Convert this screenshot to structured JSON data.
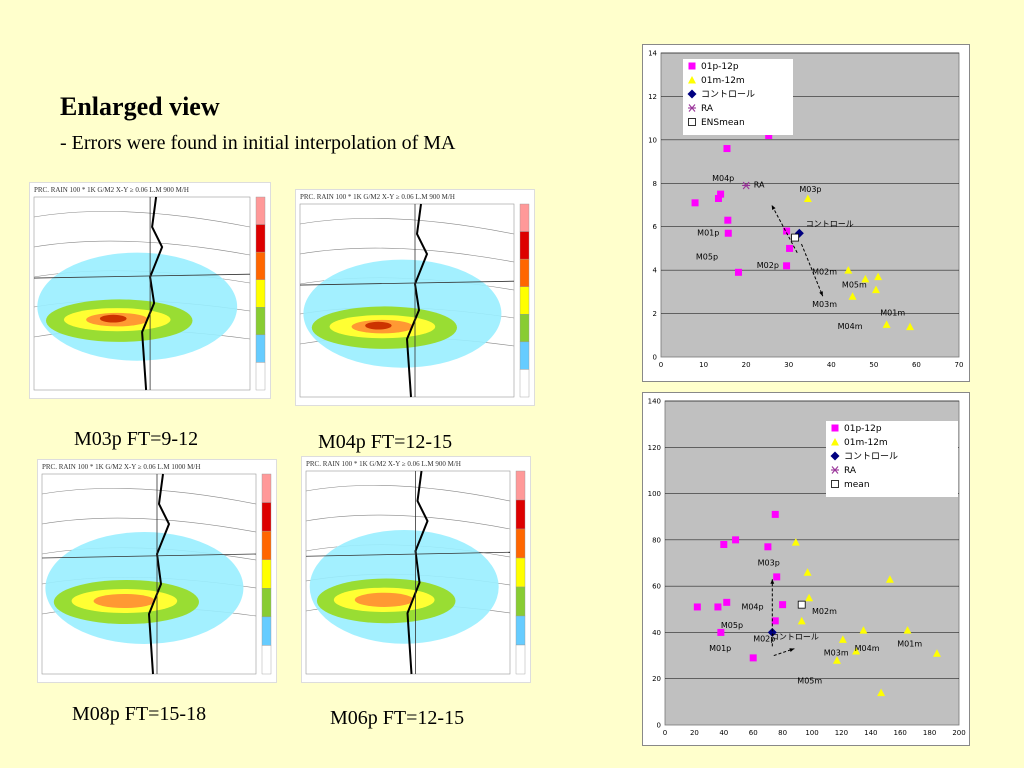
{
  "title": "Enlarged view",
  "subtitle": "- Errors were found in initial interpolation of MA",
  "maps": [
    {
      "caption": "M03p FT=9-12",
      "header": "PRC. RAIN   100 * 1K G/M2   X-Y   ≥ 0.06   L.M 900 M/H"
    },
    {
      "caption": "M04p FT=12-15",
      "header": "PRC. RAIN   100 * 1K G/M2   X-Y   ≥ 0.06   L.M 900 M/H"
    },
    {
      "caption": "M08p FT=15-18",
      "header": "PRC. RAIN   100 * 1K G/M2   X-Y   ≥ 0.06   L.M 1000 M/H"
    },
    {
      "caption": "M06p FT=12-15",
      "header": "PRC. RAIN   100 * 1K G/M2   X-Y   ≥ 0.06   L.M 900 M/H"
    }
  ],
  "colors": {
    "background": "#ffffcc",
    "plot_bg": "#c0c0c0",
    "magenta": "#ff00ff",
    "yellow": "#ffff00",
    "navy": "#000080",
    "purple": "#993399"
  },
  "chart_data": [
    {
      "type": "scatter",
      "xlim": [
        0,
        70
      ],
      "ylim": [
        0,
        14
      ],
      "xticks": [
        0,
        10,
        20,
        30,
        40,
        50,
        60,
        70
      ],
      "yticks": [
        0,
        2,
        4,
        6,
        8,
        10,
        12,
        14
      ],
      "grid": true,
      "legend_position": "top-left",
      "series": [
        {
          "name": "01p-12p",
          "marker": "square",
          "color": "#ff00ff",
          "points": [
            [
              25.3,
              10.2
            ],
            [
              15.5,
              9.6
            ],
            [
              8,
              7.1
            ],
            [
              13.5,
              7.3
            ],
            [
              14,
              7.5
            ],
            [
              15.7,
              6.3
            ],
            [
              15.8,
              5.7
            ],
            [
              18.2,
              3.9
            ],
            [
              29.5,
              4.2
            ],
            [
              29.5,
              5.8
            ],
            [
              30.2,
              5.0
            ]
          ]
        },
        {
          "name": "01m-12m",
          "marker": "triangle",
          "color": "#ffff00",
          "points": [
            [
              34.5,
              7.3
            ],
            [
              44,
              4.0
            ],
            [
              48,
              3.6
            ],
            [
              50.5,
              3.1
            ],
            [
              51,
              3.7
            ],
            [
              45,
              2.8
            ],
            [
              53,
              1.5
            ],
            [
              58.5,
              1.4
            ]
          ]
        },
        {
          "name": "コントロール",
          "marker": "diamond",
          "color": "#000080",
          "points": [
            [
              32.5,
              5.7
            ]
          ]
        },
        {
          "name": "RA",
          "marker": "asterisk",
          "color": "#993399",
          "points": [
            [
              20,
              7.9
            ]
          ]
        },
        {
          "name": "ENSmean",
          "marker": "open-square",
          "color": "#ffffff",
          "points": [
            [
              31.5,
              5.5
            ]
          ]
        }
      ],
      "labels": [
        {
          "text": "M04p",
          "x": 12,
          "y": 8.1
        },
        {
          "text": "RA",
          "x": 21.8,
          "y": 7.8
        },
        {
          "text": "M03p",
          "x": 32.5,
          "y": 7.6
        },
        {
          "text": "コントロール",
          "x": 34,
          "y": 6.0
        },
        {
          "text": "M01p",
          "x": 8.5,
          "y": 5.6
        },
        {
          "text": "M05p",
          "x": 8.2,
          "y": 4.5
        },
        {
          "text": "M02p",
          "x": 22.5,
          "y": 4.1
        },
        {
          "text": "M02m",
          "x": 35.5,
          "y": 3.8
        },
        {
          "text": "M05m",
          "x": 42.5,
          "y": 3.2
        },
        {
          "text": "M03m",
          "x": 35.5,
          "y": 2.3
        },
        {
          "text": "M01m",
          "x": 51.5,
          "y": 1.9
        },
        {
          "text": "M04m",
          "x": 41.5,
          "y": 1.3
        }
      ]
    },
    {
      "type": "scatter",
      "xlim": [
        0,
        200
      ],
      "ylim": [
        0,
        140
      ],
      "xticks": [
        0,
        20,
        40,
        60,
        80,
        100,
        120,
        140,
        160,
        180,
        200
      ],
      "yticks": [
        0,
        20,
        40,
        60,
        80,
        100,
        120,
        140
      ],
      "grid": true,
      "legend_position": "top-right",
      "series": [
        {
          "name": "01p-12p",
          "marker": "square",
          "color": "#ff00ff",
          "points": [
            [
              75,
              91
            ],
            [
              48,
              80
            ],
            [
              40,
              78
            ],
            [
              70,
              77
            ],
            [
              76,
              64
            ],
            [
              22,
              51
            ],
            [
              36,
              51
            ],
            [
              42,
              53
            ],
            [
              80,
              52
            ],
            [
              75,
              45
            ],
            [
              38,
              40
            ],
            [
              60,
              29
            ]
          ]
        },
        {
          "name": "01m-12m",
          "marker": "triangle",
          "color": "#ffff00",
          "points": [
            [
              89,
              79
            ],
            [
              97,
              66
            ],
            [
              98,
              55
            ],
            [
              153,
              63
            ],
            [
              93,
              45
            ],
            [
              121,
              37
            ],
            [
              135,
              41
            ],
            [
              165,
              41
            ],
            [
              117,
              28
            ],
            [
              130,
              32
            ],
            [
              185,
              31
            ],
            [
              147,
              14
            ]
          ]
        },
        {
          "name": "コントロール",
          "marker": "diamond",
          "color": "#000080",
          "points": [
            [
              73,
              40
            ]
          ]
        },
        {
          "name": "RA",
          "marker": "asterisk",
          "color": "#993399",
          "points": []
        },
        {
          "name": "mean",
          "marker": "open-square",
          "color": "#ffffff",
          "points": [
            [
              93,
              52
            ]
          ]
        }
      ],
      "labels": [
        {
          "text": "M03p",
          "x": 63,
          "y": 69
        },
        {
          "text": "M04p",
          "x": 52,
          "y": 50
        },
        {
          "text": "M02m",
          "x": 100,
          "y": 48
        },
        {
          "text": "M05p",
          "x": 38,
          "y": 42
        },
        {
          "text": "M02p",
          "x": 60,
          "y": 36
        },
        {
          "text": "コントロール",
          "x": 72,
          "y": 37
        },
        {
          "text": "M01p",
          "x": 30,
          "y": 32
        },
        {
          "text": "M03m",
          "x": 108,
          "y": 30
        },
        {
          "text": "M04m",
          "x": 129,
          "y": 32
        },
        {
          "text": "M01m",
          "x": 158,
          "y": 34
        },
        {
          "text": "M05m",
          "x": 90,
          "y": 18
        }
      ]
    }
  ]
}
